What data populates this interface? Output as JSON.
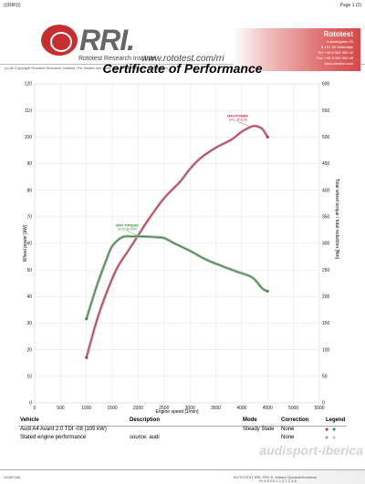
{
  "topbar": {
    "left": "(((RRI)))",
    "right": "Page 1 (2)"
  },
  "header": {
    "logo_text": "RRI.",
    "institute": "Rototest Research Institute",
    "url": "www.rototest.com/rri",
    "copyright": "(c) All Copyright Rototest Research Institute. For limited non-profit use, please visit www.rototest.com",
    "right_lines": [
      "Rototest",
      "Industrigatan 20",
      "S-151 38 Södertälje",
      "Tel: +46 8 552 550 40",
      "Fax: +46 8 552 550 49",
      "www.rototest.com"
    ]
  },
  "certificate": {
    "title": "Certificate of Performance"
  },
  "chart_data": {
    "type": "line",
    "title": "Certificate of Performance",
    "xlabel": "Engine speed [1/min]",
    "ylabel_left": "Wheel power [kW]",
    "ylabel_right": "Total wheel torque / total reduction [Nm]",
    "xlim": [
      0,
      5500
    ],
    "ylim_left": [
      0,
      120
    ],
    "ylim_right": [
      0,
      600
    ],
    "xticks": [
      "0",
      "500",
      "1000",
      "1500",
      "2000",
      "2500",
      "3000",
      "3500",
      "4000",
      "4500",
      "5000",
      "5500"
    ],
    "yticks_left": [
      "0",
      "10",
      "20",
      "30",
      "40",
      "50",
      "60",
      "70",
      "80",
      "90",
      "100",
      "110",
      "120"
    ],
    "yticks_right": [
      "0",
      "50",
      "100",
      "150",
      "200",
      "250",
      "300",
      "350",
      "400",
      "450",
      "500",
      "550",
      "600"
    ],
    "grid": true,
    "series": [
      {
        "name": "power",
        "color": "#d11f3e",
        "axis": "left",
        "x": [
          1000,
          1200,
          1400,
          1600,
          1800,
          2000,
          2200,
          2500,
          2800,
          3000,
          3200,
          3500,
          3800,
          4000,
          4200,
          4300,
          4400,
          4500
        ],
        "y": [
          17,
          31,
          42,
          51,
          57,
          63,
          69,
          77,
          83,
          88,
          92,
          96,
          99,
          102,
          104,
          104,
          103,
          100
        ]
      },
      {
        "name": "torque",
        "color": "#2b8d2f",
        "axis": "right",
        "x": [
          1000,
          1200,
          1400,
          1500,
          1700,
          1900,
          2100,
          2300,
          2500,
          2700,
          3000,
          3300,
          3600,
          3900,
          4200,
          4400,
          4500
        ],
        "y": [
          158,
          220,
          273,
          295,
          312,
          313,
          313,
          312,
          310,
          300,
          286,
          270,
          258,
          247,
          236,
          215,
          210
        ]
      }
    ],
    "annotations": [
      {
        "text": "MAX POWER",
        "sub": "104.1 @ 4135",
        "color": "#d11f3e",
        "x": 4135,
        "y": 104.1,
        "axis": "left"
      },
      {
        "text": "MAX TORQUE",
        "sub": "314.6 @ 2000",
        "color": "#2b8d2f",
        "x": 2000,
        "y": 314.6,
        "axis": "right"
      }
    ]
  },
  "legend_table": {
    "headers": {
      "vehicle": "Vehicle",
      "description": "Description",
      "mode": "Mode",
      "correction": "Correction",
      "legend": "Legend"
    },
    "rows": [
      {
        "vehicle": "Audi A4 Avant 2.0 TDI -08 (105 kW)",
        "description": "",
        "mode": "Steady State",
        "correction": "None"
      },
      {
        "vehicle": "Stated engine performance",
        "description": "source: audi",
        "mode": "",
        "correction": "None"
      }
    ]
  },
  "footer": {
    "left": "2008/7/88",
    "center": "ROTOTEST RRI, FR0 S. Mätare Sjöstedt/Hornblad",
    "page": "Pr # 6 0 6 1 1 0 1 2 4 8"
  },
  "watermark": "audisport-iberica"
}
